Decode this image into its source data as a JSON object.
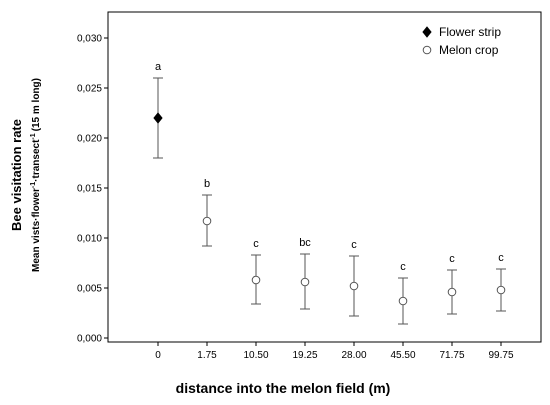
{
  "chart_data": {
    "type": "scatter",
    "xlabel": "distance into the melon field (m)",
    "ylabel": "Bee visitation rate",
    "ylabel_sub": {
      "base": "Mean vists·flower",
      "exp1": "-1",
      "mid": "·transect",
      "exp2": "-1",
      "tail": "(15 m long)"
    },
    "categories": [
      "0",
      "1.75",
      "10.50",
      "19.25",
      "28.00",
      "45.50",
      "71.75",
      "99.75"
    ],
    "yticks": [
      "0,000",
      "0,005",
      "0,010",
      "0,015",
      "0,020",
      "0,025",
      "0,030"
    ],
    "ylim": [
      0,
      0.032
    ],
    "grid": false,
    "legend_position": "top-right",
    "series": [
      {
        "name": "Flower strip",
        "marker": "filled-diamond",
        "color": "#000000",
        "points": [
          {
            "x": "0",
            "y": 0.022,
            "low": 0.018,
            "high": 0.026,
            "letter": "a"
          }
        ]
      },
      {
        "name": "Melon crop",
        "marker": "open-circle",
        "color": "#555555",
        "points": [
          {
            "x": "1.75",
            "y": 0.0117,
            "low": 0.0092,
            "high": 0.0143,
            "letter": "b"
          },
          {
            "x": "10.50",
            "y": 0.0058,
            "low": 0.0034,
            "high": 0.0083,
            "letter": "c"
          },
          {
            "x": "19.25",
            "y": 0.0056,
            "low": 0.0029,
            "high": 0.0084,
            "letter": "bc"
          },
          {
            "x": "28.00",
            "y": 0.0052,
            "low": 0.0022,
            "high": 0.0082,
            "letter": "c"
          },
          {
            "x": "45.50",
            "y": 0.0037,
            "low": 0.0014,
            "high": 0.006,
            "letter": "c"
          },
          {
            "x": "71.75",
            "y": 0.0046,
            "low": 0.0024,
            "high": 0.0068,
            "letter": "c"
          },
          {
            "x": "99.75",
            "y": 0.0048,
            "low": 0.0027,
            "high": 0.0069,
            "letter": "c"
          }
        ]
      }
    ]
  }
}
